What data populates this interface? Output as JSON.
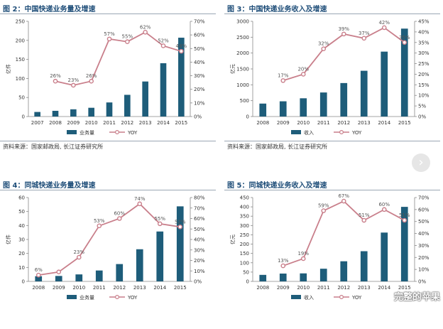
{
  "colors": {
    "bar": "#1e5d7a",
    "line": "#c97f8b",
    "title": "#1f4e79"
  },
  "source_note": "资料来源：国家邮政局, 长江证券研究所",
  "watermark": "完整的苹果",
  "chart_data": [
    {
      "type": "bar",
      "title": "图 2：中国快递业务量及增速",
      "ylabel": "亿件",
      "categories": [
        "2007",
        "2008",
        "2009",
        "2010",
        "2011",
        "2012",
        "2013",
        "2014",
        "2015"
      ],
      "ylim": [
        0,
        250
      ],
      "yticks": [
        0,
        50,
        100,
        150,
        200,
        250
      ],
      "y2lim": [
        0,
        0.7
      ],
      "y2ticks": [
        "0%",
        "10%",
        "20%",
        "30%",
        "40%",
        "50%",
        "60%",
        "70%"
      ],
      "series": [
        {
          "name": "业务量",
          "axis": "left",
          "values": [
            12,
            15,
            19,
            23,
            37,
            57,
            92,
            140,
            207
          ]
        },
        {
          "name": "YOY",
          "axis": "right",
          "values": [
            null,
            0.26,
            0.23,
            0.26,
            0.57,
            0.55,
            0.62,
            0.52,
            0.48
          ],
          "labels": [
            null,
            "26%",
            "23%",
            "26%",
            "57%",
            "55%",
            "62%",
            "52%",
            "48%"
          ]
        }
      ]
    },
    {
      "type": "bar",
      "title": "图 3：中国快递业务收入及增速",
      "ylabel": "亿元",
      "categories": [
        "2008",
        "2009",
        "2010",
        "2011",
        "2012",
        "2013",
        "2014",
        "2015"
      ],
      "ylim": [
        0,
        3000
      ],
      "yticks": [
        0,
        500,
        1000,
        1500,
        2000,
        2500,
        3000
      ],
      "y2lim": [
        0,
        0.45
      ],
      "y2ticks": [
        "0%",
        "5%",
        "10%",
        "15%",
        "20%",
        "25%",
        "30%",
        "35%",
        "40%",
        "45%"
      ],
      "series": [
        {
          "name": "收入",
          "axis": "left",
          "values": [
            408,
            480,
            575,
            758,
            1055,
            1442,
            2045,
            2770
          ]
        },
        {
          "name": "YOY",
          "axis": "right",
          "values": [
            null,
            0.17,
            0.2,
            0.32,
            0.39,
            0.37,
            0.42,
            0.35
          ],
          "labels": [
            null,
            "17%",
            "20%",
            "32%",
            "39%",
            "37%",
            "42%",
            "35%"
          ]
        }
      ]
    },
    {
      "type": "bar",
      "title": "图 4：同城快递业务量及增速",
      "ylabel": "亿件",
      "categories": [
        "2008",
        "2009",
        "2010",
        "2011",
        "2012",
        "2013",
        "2014",
        "2015"
      ],
      "ylim": [
        0,
        60
      ],
      "yticks": [
        0,
        10,
        20,
        30,
        40,
        50,
        60
      ],
      "y2lim": [
        0,
        0.8
      ],
      "y2ticks": [
        "0%",
        "10%",
        "20%",
        "30%",
        "40%",
        "50%",
        "60%",
        "70%",
        "80%"
      ],
      "series": [
        {
          "name": "业务量",
          "axis": "left",
          "values": [
            3.7,
            3.9,
            5.0,
            7.8,
            12.4,
            23.0,
            35.7,
            53.7
          ]
        },
        {
          "name": "YOY",
          "axis": "right",
          "values": [
            0.06,
            0.09,
            0.23,
            0.53,
            0.6,
            0.74,
            0.55,
            0.52
          ],
          "labels": [
            "6%",
            null,
            "23%",
            "53%",
            "60%",
            "74%",
            "55%",
            "52%"
          ]
        }
      ]
    },
    {
      "type": "bar",
      "title": "图 5：同城快递业务收入及增速",
      "ylabel": "亿元",
      "categories": [
        "2008",
        "2009",
        "2010",
        "2011",
        "2012",
        "2013",
        "2014",
        "2015"
      ],
      "ylim": [
        0,
        450
      ],
      "yticks": [
        0,
        50,
        100,
        150,
        200,
        250,
        300,
        350,
        400,
        450
      ],
      "y2lim": [
        0,
        0.7
      ],
      "y2ticks": [
        "0%",
        "10%",
        "20%",
        "30%",
        "40%",
        "50%",
        "60%",
        "70%"
      ],
      "series": [
        {
          "name": "收入",
          "axis": "left",
          "values": [
            35,
            42,
            43,
            68,
            108,
            162,
            262,
            400
          ]
        },
        {
          "name": "YOY",
          "axis": "right",
          "values": [
            null,
            0.13,
            0.19,
            0.59,
            0.67,
            0.51,
            0.6,
            0.51
          ],
          "labels": [
            null,
            "13%",
            "19%",
            "59%",
            "67%",
            "51%",
            "60%",
            "51%"
          ]
        }
      ]
    }
  ]
}
